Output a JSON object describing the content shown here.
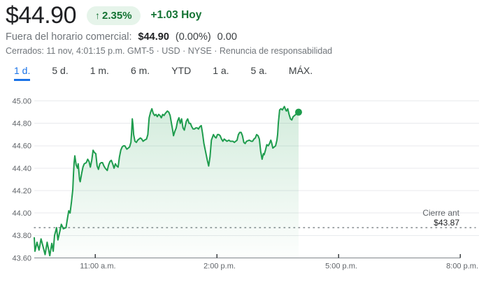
{
  "header": {
    "price": "$44.90",
    "change_arrow": "↑",
    "change_percent": "2.35%",
    "change_today": "+1.03 Hoy",
    "afterhours_label": "Fuera del horario comercial:",
    "afterhours_price": "$44.90",
    "afterhours_percent": "(0.00%)",
    "afterhours_change": "0.00",
    "status_text": "Cerrados: 11 nov, 4:01:15 p.m. GMT-5 · USD · NYSE · ",
    "disclaimer": "Renuncia de responsabilidad"
  },
  "tabs": [
    {
      "label": "1 d.",
      "active": true
    },
    {
      "label": "5 d.",
      "active": false
    },
    {
      "label": "1 m.",
      "active": false
    },
    {
      "label": "6 m.",
      "active": false
    },
    {
      "label": "YTD",
      "active": false
    },
    {
      "label": "1 a.",
      "active": false
    },
    {
      "label": "5 a.",
      "active": false
    },
    {
      "label": "MÁX.",
      "active": false
    }
  ],
  "colors": {
    "green_text": "#137333",
    "badge_bg": "#e6f4ea",
    "line_green": "#1e9c4d",
    "blue_accent": "#1a73e8",
    "grid": "#e8eaed",
    "axis": "#80868b",
    "tick_label": "#5f6368"
  },
  "chart_data": {
    "type": "area",
    "title": "Intraday price 1 d.",
    "x_axis": {
      "labels": [
        "11:00 a.m.",
        "2:00 p.m.",
        "5:00 p.m.",
        "8:00 p.m."
      ],
      "tick_minutes": [
        90,
        270,
        450,
        630
      ],
      "domain_minutes": [
        0,
        630
      ],
      "session_start": "9:30 a.m."
    },
    "y_axis": {
      "ticks": [
        "45.00",
        "44.80",
        "44.60",
        "44.40",
        "44.20",
        "44.00",
        "43.80",
        "43.60"
      ],
      "min": 43.6,
      "max": 45.0
    },
    "previous_close": {
      "label": "Cierre ant",
      "value_label": "$43.87",
      "value": 43.87
    },
    "last_price": 44.9,
    "points": [
      [
        0,
        43.78
      ],
      [
        1,
        43.66
      ],
      [
        4,
        43.74
      ],
      [
        7,
        43.67
      ],
      [
        10,
        43.77
      ],
      [
        13,
        43.7
      ],
      [
        16,
        43.63
      ],
      [
        19,
        43.74
      ],
      [
        21,
        43.68
      ],
      [
        23,
        43.62
      ],
      [
        26,
        43.73
      ],
      [
        28,
        43.66
      ],
      [
        30,
        43.8
      ],
      [
        33,
        43.87
      ],
      [
        35,
        43.76
      ],
      [
        38,
        43.84
      ],
      [
        40,
        43.9
      ],
      [
        43,
        43.86
      ],
      [
        47,
        43.87
      ],
      [
        49,
        43.95
      ],
      [
        51,
        44.02
      ],
      [
        53,
        44.0
      ],
      [
        55,
        44.1
      ],
      [
        57,
        44.21
      ],
      [
        58,
        44.35
      ],
      [
        59,
        44.45
      ],
      [
        60,
        44.51
      ],
      [
        62,
        44.43
      ],
      [
        64,
        44.4
      ],
      [
        65,
        44.44
      ],
      [
        67,
        44.3
      ],
      [
        68,
        44.28
      ],
      [
        70,
        44.35
      ],
      [
        72,
        44.41
      ],
      [
        74,
        44.44
      ],
      [
        77,
        44.45
      ],
      [
        79,
        44.48
      ],
      [
        81,
        44.46
      ],
      [
        83,
        44.41
      ],
      [
        85,
        44.47
      ],
      [
        87,
        44.56
      ],
      [
        89,
        44.54
      ],
      [
        91,
        44.53
      ],
      [
        93,
        44.42
      ],
      [
        95,
        44.39
      ],
      [
        97,
        44.44
      ],
      [
        99,
        44.45
      ],
      [
        101,
        44.45
      ],
      [
        103,
        44.42
      ],
      [
        105,
        44.4
      ],
      [
        108,
        44.38
      ],
      [
        110,
        44.43
      ],
      [
        112,
        44.46
      ],
      [
        114,
        44.47
      ],
      [
        116,
        44.44
      ],
      [
        118,
        44.4
      ],
      [
        120,
        44.44
      ],
      [
        122,
        44.42
      ],
      [
        124,
        44.41
      ],
      [
        126,
        44.5
      ],
      [
        128,
        44.56
      ],
      [
        130,
        44.59
      ],
      [
        132,
        44.6
      ],
      [
        134,
        44.6
      ],
      [
        137,
        44.57
      ],
      [
        139,
        44.58
      ],
      [
        141,
        44.59
      ],
      [
        143,
        44.63
      ],
      [
        144,
        44.72
      ],
      [
        145,
        44.84
      ],
      [
        146,
        44.79
      ],
      [
        147,
        44.7
      ],
      [
        149,
        44.64
      ],
      [
        151,
        44.63
      ],
      [
        153,
        44.65
      ],
      [
        155,
        44.66
      ],
      [
        157,
        44.67
      ],
      [
        159,
        44.66
      ],
      [
        161,
        44.64
      ],
      [
        163,
        44.65
      ],
      [
        166,
        44.66
      ],
      [
        168,
        44.7
      ],
      [
        169,
        44.78
      ],
      [
        170,
        44.85
      ],
      [
        172,
        44.9
      ],
      [
        174,
        44.93
      ],
      [
        176,
        44.89
      ],
      [
        178,
        44.87
      ],
      [
        180,
        44.88
      ],
      [
        182,
        44.86
      ],
      [
        184,
        44.88
      ],
      [
        186,
        44.87
      ],
      [
        188,
        44.85
      ],
      [
        190,
        44.88
      ],
      [
        192,
        44.87
      ],
      [
        194,
        44.89
      ],
      [
        197,
        44.91
      ],
      [
        199,
        44.9
      ],
      [
        201,
        44.87
      ],
      [
        203,
        44.8
      ],
      [
        205,
        44.73
      ],
      [
        206,
        44.69
      ],
      [
        208,
        44.73
      ],
      [
        210,
        44.76
      ],
      [
        212,
        44.82
      ],
      [
        214,
        44.85
      ],
      [
        216,
        44.8
      ],
      [
        218,
        44.84
      ],
      [
        220,
        44.76
      ],
      [
        222,
        44.74
      ],
      [
        225,
        44.82
      ],
      [
        227,
        44.84
      ],
      [
        229,
        44.8
      ],
      [
        231,
        44.8
      ],
      [
        233,
        44.77
      ],
      [
        235,
        44.75
      ],
      [
        237,
        44.75
      ],
      [
        239,
        44.76
      ],
      [
        241,
        44.76
      ],
      [
        243,
        44.75
      ],
      [
        245,
        44.77
      ],
      [
        247,
        44.78
      ],
      [
        249,
        44.71
      ],
      [
        251,
        44.62
      ],
      [
        253,
        44.56
      ],
      [
        256,
        44.47
      ],
      [
        258,
        44.42
      ],
      [
        260,
        44.5
      ],
      [
        262,
        44.65
      ],
      [
        265,
        44.7
      ],
      [
        267,
        44.68
      ],
      [
        269,
        44.67
      ],
      [
        271,
        44.7
      ],
      [
        273,
        44.7
      ],
      [
        275,
        44.69
      ],
      [
        277,
        44.66
      ],
      [
        279,
        44.64
      ],
      [
        281,
        44.66
      ],
      [
        283,
        44.65
      ],
      [
        285,
        44.64
      ],
      [
        288,
        44.65
      ],
      [
        290,
        44.64
      ],
      [
        292,
        44.64
      ],
      [
        294,
        44.64
      ],
      [
        296,
        44.63
      ],
      [
        298,
        44.64
      ],
      [
        300,
        44.65
      ],
      [
        302,
        44.7
      ],
      [
        304,
        44.72
      ],
      [
        306,
        44.72
      ],
      [
        308,
        44.69
      ],
      [
        310,
        44.63
      ],
      [
        312,
        44.62
      ],
      [
        314,
        44.64
      ],
      [
        318,
        44.65
      ],
      [
        321,
        44.64
      ],
      [
        323,
        44.64
      ],
      [
        325,
        44.66
      ],
      [
        327,
        44.67
      ],
      [
        329,
        44.7
      ],
      [
        331,
        44.69
      ],
      [
        333,
        44.66
      ],
      [
        335,
        44.55
      ],
      [
        337,
        44.48
      ],
      [
        339,
        44.53
      ],
      [
        340,
        44.52
      ],
      [
        342,
        44.56
      ],
      [
        344,
        44.61
      ],
      [
        346,
        44.6
      ],
      [
        348,
        44.62
      ],
      [
        350,
        44.65
      ],
      [
        351,
        44.63
      ],
      [
        353,
        44.58
      ],
      [
        355,
        44.59
      ],
      [
        357,
        44.6
      ],
      [
        359,
        44.65
      ],
      [
        360,
        44.7
      ],
      [
        361,
        44.8
      ],
      [
        363,
        44.92
      ],
      [
        365,
        44.93
      ],
      [
        367,
        44.92
      ],
      [
        369,
        44.94
      ],
      [
        370,
        44.95
      ],
      [
        372,
        44.92
      ],
      [
        373,
        44.91
      ],
      [
        375,
        44.93
      ],
      [
        377,
        44.88
      ],
      [
        379,
        44.84
      ],
      [
        381,
        44.83
      ],
      [
        383,
        44.86
      ],
      [
        385,
        44.87
      ],
      [
        387,
        44.88
      ],
      [
        391,
        44.9
      ]
    ]
  }
}
